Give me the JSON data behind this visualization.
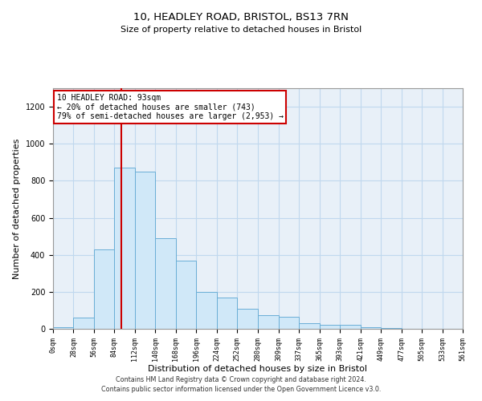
{
  "title1": "10, HEADLEY ROAD, BRISTOL, BS13 7RN",
  "title2": "Size of property relative to detached houses in Bristol",
  "xlabel": "Distribution of detached houses by size in Bristol",
  "ylabel": "Number of detached properties",
  "bin_edges": [
    0,
    28,
    56,
    84,
    112,
    140,
    168,
    196,
    224,
    252,
    280,
    309,
    337,
    365,
    393,
    421,
    449,
    477,
    505,
    533,
    561
  ],
  "bar_heights": [
    10,
    60,
    430,
    870,
    850,
    490,
    370,
    200,
    170,
    110,
    75,
    65,
    30,
    20,
    20,
    10,
    5,
    0,
    2,
    2
  ],
  "bar_color": "#d0e8f8",
  "bar_edge_color": "#6aaed6",
  "property_size": 93,
  "red_line_color": "#cc0000",
  "annotation_line1": "10 HEADLEY ROAD: 93sqm",
  "annotation_line2": "← 20% of detached houses are smaller (743)",
  "annotation_line3": "79% of semi-detached houses are larger (2,953) →",
  "annotation_box_color": "#ffffff",
  "annotation_box_edge": "#cc0000",
  "ylim": [
    0,
    1300
  ],
  "yticks": [
    0,
    200,
    400,
    600,
    800,
    1000,
    1200
  ],
  "grid_color": "#c0d8ee",
  "background_color": "#e8f0f8",
  "footer1": "Contains HM Land Registry data © Crown copyright and database right 2024.",
  "footer2": "Contains public sector information licensed under the Open Government Licence v3.0."
}
